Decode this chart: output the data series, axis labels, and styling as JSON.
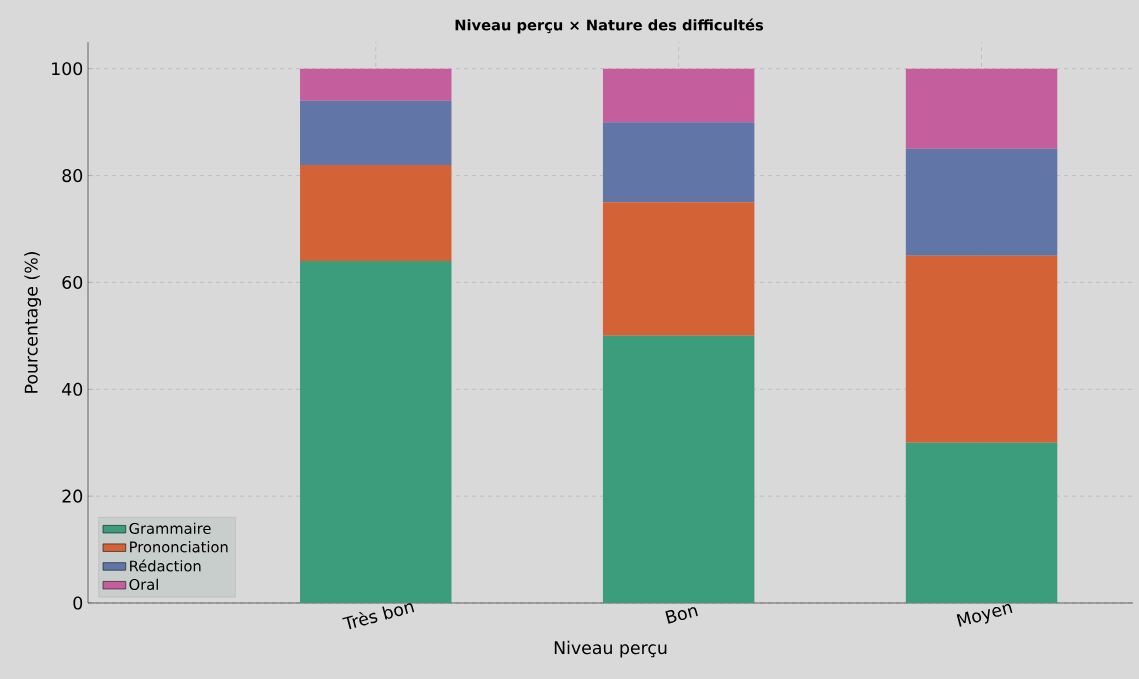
{
  "chart_data": {
    "type": "bar",
    "title": "**Niveau perçu × Nature des difficultés**",
    "xlabel": "Niveau perçu",
    "ylabel": "Pourcentage (%)",
    "categories": [
      "Très bon",
      "Bon",
      "Moyen"
    ],
    "stacked": true,
    "ylim": [
      0,
      105
    ],
    "yticks": [
      0,
      20,
      40,
      60,
      80,
      100
    ],
    "grid": true,
    "legend": "bottom left",
    "series": [
      {
        "name": "Grammaire",
        "color": "#3c9d7c",
        "values": [
          64,
          50,
          30
        ]
      },
      {
        "name": "Prononciation",
        "color": "#d46237",
        "values": [
          18,
          25,
          35
        ]
      },
      {
        "name": "Rédaction",
        "color": "#6176a6",
        "values": [
          12,
          15,
          20
        ]
      },
      {
        "name": "Oral",
        "color": "#c55e9d",
        "values": [
          6,
          10,
          15
        ]
      }
    ]
  }
}
